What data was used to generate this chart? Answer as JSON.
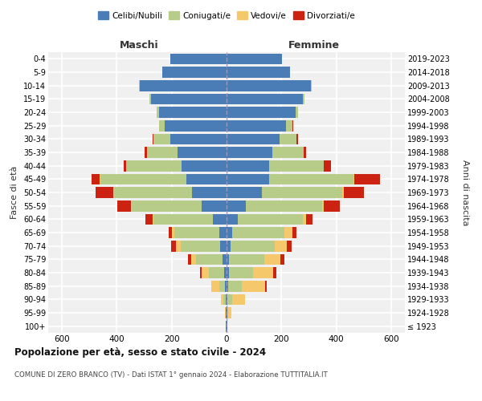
{
  "age_groups": [
    "100+",
    "95-99",
    "90-94",
    "85-89",
    "80-84",
    "75-79",
    "70-74",
    "65-69",
    "60-64",
    "55-59",
    "50-54",
    "45-49",
    "40-44",
    "35-39",
    "30-34",
    "25-29",
    "20-24",
    "15-19",
    "10-14",
    "5-9",
    "0-4"
  ],
  "birth_years": [
    "≤ 1923",
    "1924-1928",
    "1929-1933",
    "1934-1938",
    "1939-1943",
    "1944-1948",
    "1949-1953",
    "1954-1958",
    "1959-1963",
    "1964-1968",
    "1969-1973",
    "1974-1978",
    "1979-1983",
    "1984-1988",
    "1989-1993",
    "1994-1998",
    "1999-2003",
    "2004-2008",
    "2009-2013",
    "2014-2018",
    "2019-2023"
  ],
  "colors": {
    "celibi": "#4a7cb5",
    "coniugati": "#b8cc8a",
    "vedovi": "#f5c96b",
    "divorziati": "#cc2211"
  },
  "males": {
    "celibi": [
      2,
      2,
      3,
      5,
      10,
      15,
      22,
      25,
      50,
      90,
      125,
      145,
      165,
      180,
      205,
      225,
      245,
      275,
      315,
      235,
      205
    ],
    "coniugati": [
      0,
      2,
      8,
      20,
      55,
      95,
      145,
      165,
      215,
      255,
      285,
      315,
      200,
      110,
      60,
      20,
      10,
      5,
      3,
      0,
      0
    ],
    "vedovi": [
      0,
      2,
      10,
      30,
      25,
      18,
      16,
      10,
      5,
      3,
      2,
      2,
      1,
      1,
      0,
      0,
      0,
      0,
      0,
      0,
      0
    ],
    "divorziati": [
      0,
      0,
      0,
      2,
      8,
      12,
      18,
      12,
      25,
      50,
      65,
      30,
      10,
      8,
      5,
      2,
      0,
      0,
      0,
      0,
      0
    ]
  },
  "females": {
    "celibi": [
      2,
      2,
      3,
      5,
      8,
      10,
      15,
      20,
      40,
      70,
      130,
      155,
      155,
      168,
      192,
      218,
      252,
      278,
      308,
      232,
      202
    ],
    "coniugati": [
      0,
      5,
      18,
      52,
      88,
      128,
      162,
      192,
      238,
      278,
      292,
      308,
      198,
      112,
      63,
      22,
      10,
      5,
      3,
      0,
      0
    ],
    "vedovi": [
      2,
      12,
      45,
      85,
      75,
      58,
      42,
      28,
      12,
      6,
      5,
      3,
      2,
      1,
      0,
      0,
      0,
      0,
      0,
      0,
      0
    ],
    "divorziati": [
      0,
      0,
      2,
      5,
      10,
      15,
      18,
      15,
      22,
      58,
      75,
      92,
      25,
      10,
      5,
      3,
      0,
      0,
      0,
      0,
      0
    ]
  },
  "xlim": 650,
  "xticks": [
    -600,
    -400,
    -200,
    0,
    200,
    400,
    600
  ],
  "title": "Popolazione per età, sesso e stato civile - 2024",
  "subtitle": "COMUNE DI ZERO BRANCO (TV) - Dati ISTAT 1° gennaio 2024 - Elaborazione TUTTITALIA.IT",
  "ylabel_left": "Fasce di età",
  "ylabel_right": "Anni di nascita",
  "maschi_label": "Maschi",
  "femmine_label": "Femmine",
  "legend_labels": [
    "Celibi/Nubili",
    "Coniugati/e",
    "Vedovi/e",
    "Divorziati/e"
  ],
  "bg_color": "#f0f0f0",
  "grid_color": "#ffffff",
  "center_line_color": "#9999bb"
}
